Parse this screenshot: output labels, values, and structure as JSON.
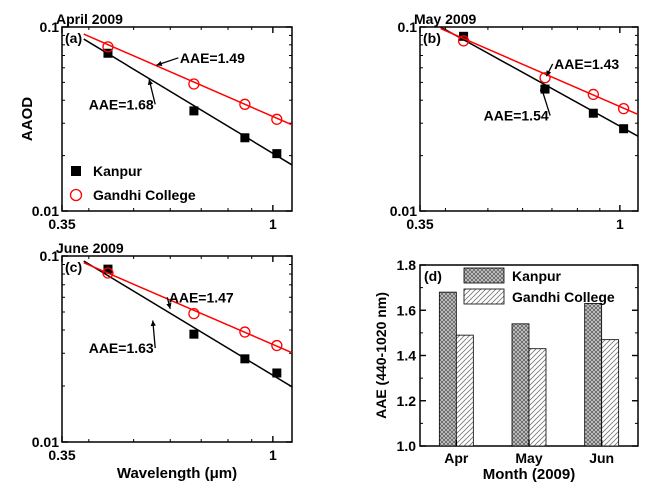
{
  "chart_data": [
    {
      "type": "scatter",
      "title": "April 2009",
      "panel_label": "(a)",
      "xlabel": "",
      "ylabel": "AAOD",
      "xscale": "log",
      "yscale": "log",
      "xlim": [
        0.35,
        1.1
      ],
      "ylim": [
        0.01,
        0.1
      ],
      "xticks": [
        {
          "value": 0.35,
          "label": "0.35"
        },
        {
          "value": 1,
          "label": "1"
        }
      ],
      "yticks": [
        {
          "value": 0.01,
          "label": "0.01"
        },
        {
          "value": 0.1,
          "label": "0.1"
        }
      ],
      "series": [
        {
          "name": "Kanpur",
          "marker": "filled-square",
          "color": "#000000",
          "x": [
            0.44,
            0.675,
            0.87,
            1.02
          ],
          "y": [
            0.072,
            0.035,
            0.025,
            0.0205
          ],
          "fit": {
            "x": [
              0.39,
              1.1
            ],
            "y": [
              0.086,
              0.0178
            ]
          }
        },
        {
          "name": "Gandhi College",
          "marker": "open-circle",
          "color": "#ff0000",
          "x": [
            0.44,
            0.675,
            0.87,
            1.02
          ],
          "y": [
            0.078,
            0.049,
            0.038,
            0.0315
          ],
          "fit": {
            "x": [
              0.39,
              1.1
            ],
            "y": [
              0.0915,
              0.0294
            ]
          }
        }
      ],
      "annotations": [
        {
          "text": "AAE=1.49",
          "x": 0.74,
          "y": 0.068,
          "arrow_to": [
            0.56,
            0.062
          ]
        },
        {
          "text": "AAE=1.68",
          "x": 0.47,
          "y": 0.038,
          "arrow_to": [
            0.54,
            0.052
          ]
        }
      ],
      "legend": {
        "position": "bottom-left",
        "entries": [
          "Kanpur",
          "Gandhi College"
        ]
      }
    },
    {
      "type": "scatter",
      "title": "May 2009",
      "panel_label": "(b)",
      "xlabel": "",
      "ylabel": "",
      "xscale": "log",
      "yscale": "log",
      "xlim": [
        0.35,
        1.1
      ],
      "ylim": [
        0.01,
        0.1
      ],
      "xticks": [
        {
          "value": 0.35,
          "label": "0.35"
        },
        {
          "value": 1,
          "label": "1"
        }
      ],
      "yticks": [
        {
          "value": 0.01,
          "label": "0.01"
        },
        {
          "value": 0.1,
          "label": "0.1"
        }
      ],
      "series": [
        {
          "name": "Kanpur",
          "marker": "filled-square",
          "color": "#000000",
          "x": [
            0.44,
            0.675,
            0.87,
            1.02
          ],
          "y": [
            0.089,
            0.046,
            0.034,
            0.028
          ],
          "fit": {
            "x": [
              0.39,
              1.1
            ],
            "y": [
              0.1,
              0.0255
            ]
          }
        },
        {
          "name": "Gandhi College",
          "marker": "open-circle",
          "color": "#ff0000",
          "x": [
            0.44,
            0.675,
            0.87,
            1.02
          ],
          "y": [
            0.084,
            0.053,
            0.043,
            0.036
          ],
          "fit": {
            "x": [
              0.39,
              1.1
            ],
            "y": [
              0.098,
              0.0335
            ]
          }
        }
      ],
      "annotations": [
        {
          "text": "AAE=1.43",
          "x": 0.84,
          "y": 0.063,
          "arrow_to": [
            0.68,
            0.054
          ]
        },
        {
          "text": "AAE=1.54",
          "x": 0.58,
          "y": 0.033,
          "arrow_to": [
            0.66,
            0.048
          ]
        }
      ]
    },
    {
      "type": "scatter",
      "title": "June 2009",
      "panel_label": "(c)",
      "xlabel": "Wavelength (μm)",
      "ylabel": "",
      "xscale": "log",
      "yscale": "log",
      "xlim": [
        0.35,
        1.1
      ],
      "ylim": [
        0.01,
        0.1
      ],
      "xticks": [
        {
          "value": 0.35,
          "label": "0.35"
        },
        {
          "value": 1,
          "label": "1"
        }
      ],
      "yticks": [
        {
          "value": 0.01,
          "label": "0.01"
        },
        {
          "value": 0.1,
          "label": "0.1"
        }
      ],
      "series": [
        {
          "name": "Kanpur",
          "marker": "filled-square",
          "color": "#000000",
          "x": [
            0.44,
            0.675,
            0.87,
            1.02
          ],
          "y": [
            0.085,
            0.038,
            0.028,
            0.0235
          ],
          "fit": {
            "x": [
              0.39,
              1.1
            ],
            "y": [
              0.094,
              0.0198
            ]
          }
        },
        {
          "name": "Gandhi College",
          "marker": "open-circle",
          "color": "#ff0000",
          "x": [
            0.44,
            0.675,
            0.87,
            1.02
          ],
          "y": [
            0.081,
            0.049,
            0.039,
            0.033
          ],
          "fit": {
            "x": [
              0.39,
              1.1
            ],
            "y": [
              0.092,
              0.0302
            ]
          }
        }
      ],
      "annotations": [
        {
          "text": "AAE=1.47",
          "x": 0.7,
          "y": 0.06,
          "arrow_to": [
            0.6,
            0.052
          ]
        },
        {
          "text": "AAE=1.63",
          "x": 0.47,
          "y": 0.032,
          "arrow_to": [
            0.55,
            0.045
          ]
        }
      ]
    },
    {
      "type": "bar",
      "panel_label": "(d)",
      "xlabel": "Month (2009)",
      "ylabel": "AAE (440-1020 nm)",
      "categories": [
        "Apr",
        "May",
        "Jun"
      ],
      "ylim": [
        1.0,
        1.8
      ],
      "yticks": [
        "1.0",
        "1.2",
        "1.4",
        "1.6",
        "1.8"
      ],
      "series": [
        {
          "name": "Kanpur",
          "pattern": "crosshatch",
          "values": [
            1.68,
            1.54,
            1.63
          ]
        },
        {
          "name": "Gandhi College",
          "pattern": "diagonal",
          "values": [
            1.49,
            1.43,
            1.47
          ]
        }
      ],
      "legend": {
        "position": "top-right",
        "entries": [
          "Kanpur",
          "Gandhi College"
        ]
      }
    }
  ]
}
